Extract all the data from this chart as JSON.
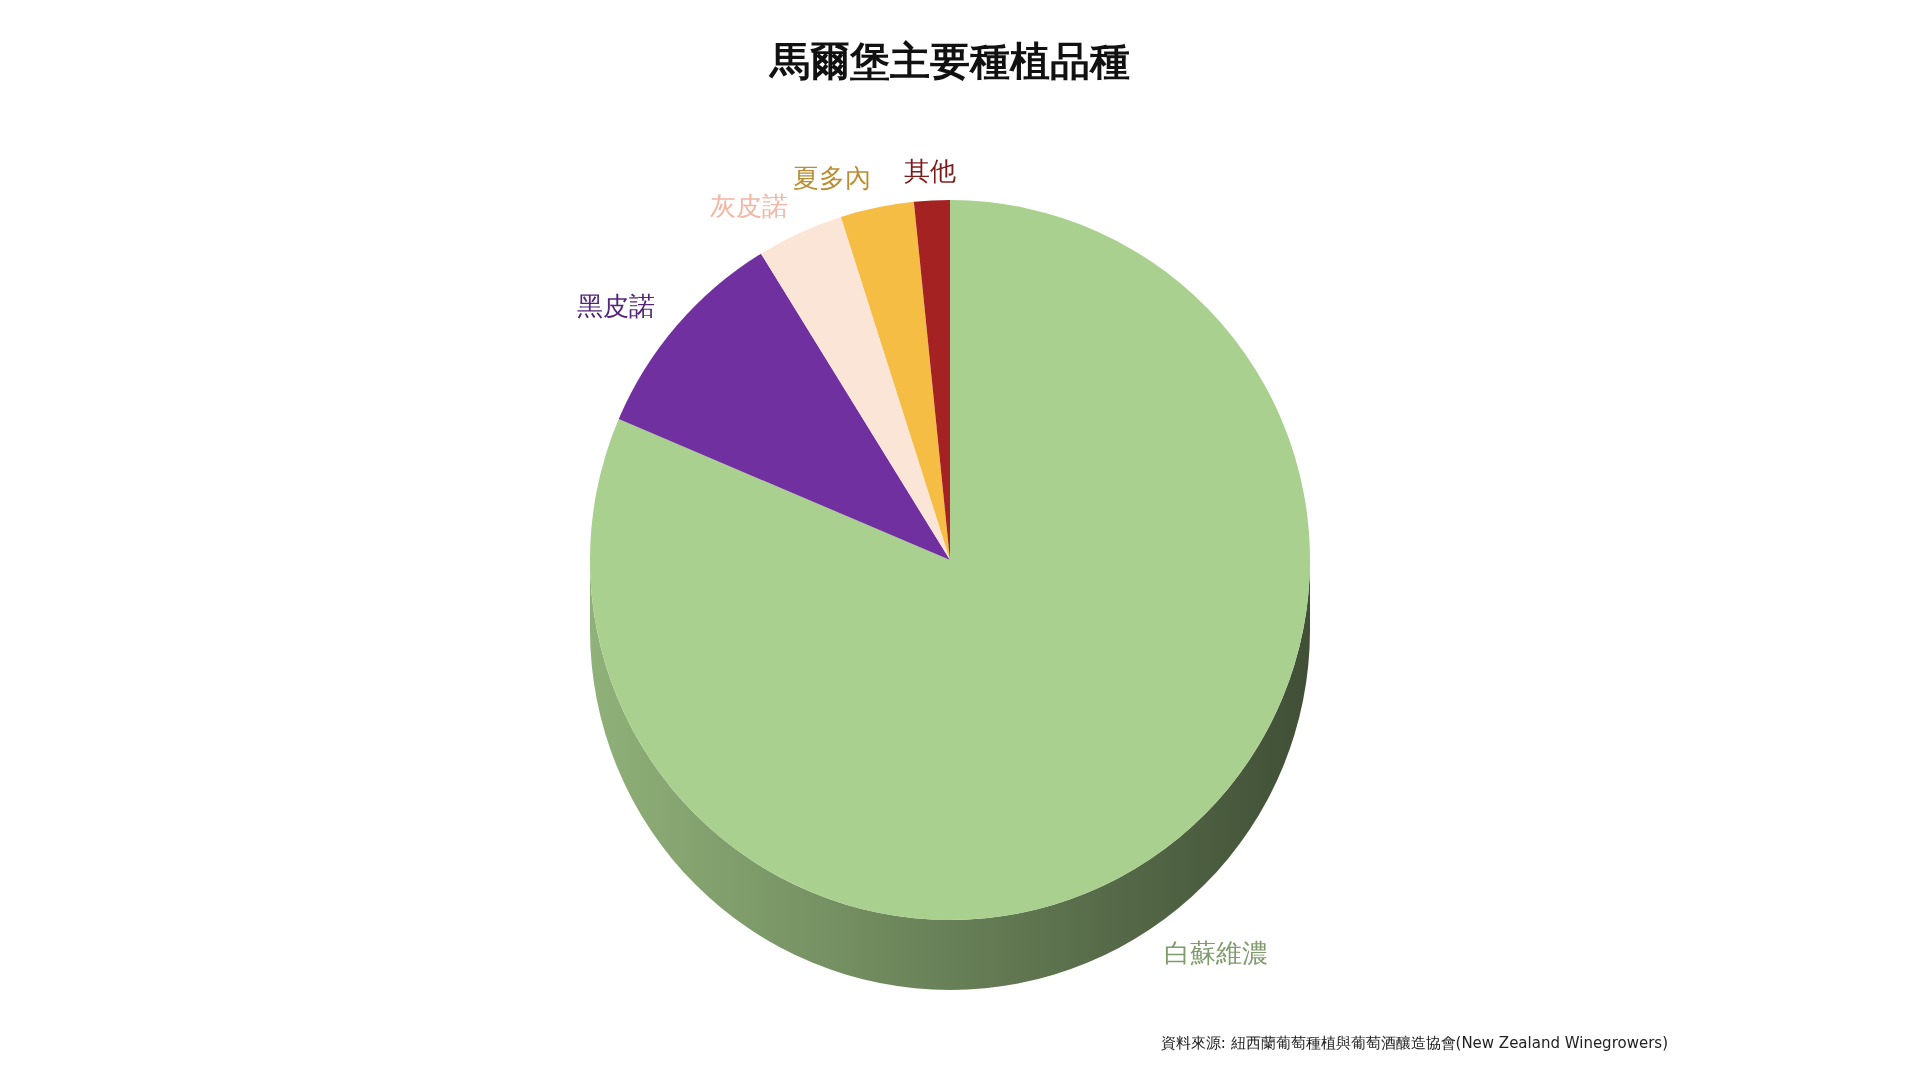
{
  "chart_data": {
    "type": "pie",
    "title": "馬爾堡主要種植品種",
    "categories": [
      "白蘇維濃",
      "黑皮諾",
      "灰皮諾",
      "夏多內",
      "其他"
    ],
    "values": [
      81.4,
      9.8,
      3.9,
      3.3,
      1.6
    ],
    "colors": [
      "#a9d08e",
      "#7030a0",
      "#fbe5d6",
      "#f6bd45",
      "#a52222"
    ],
    "annotations": [
      "資料來源: 紐西蘭葡萄種植與葡萄酒釀造協會(New Zealand Winegrowers)"
    ]
  }
}
